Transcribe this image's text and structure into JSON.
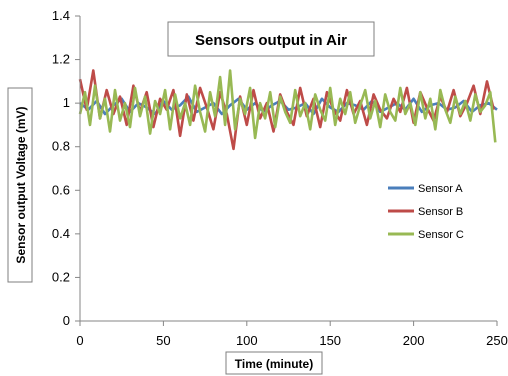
{
  "chart_data": {
    "type": "line",
    "title": "Sensors output in Air",
    "xlabel": "Time (minute)",
    "ylabel": "Sensor output Voltage (mV)",
    "xlim": [
      0,
      250
    ],
    "ylim": [
      0,
      1.4
    ],
    "x_ticks": [
      "0",
      "50",
      "100",
      "150",
      "200",
      "250"
    ],
    "y_ticks": [
      "0",
      "0.2",
      "0.4",
      "0.6",
      "0.8",
      "1",
      "1.2",
      "1.4"
    ],
    "grid": false,
    "legend_position": "right",
    "series": [
      {
        "name": "Sensor A",
        "color": "#4a7ebb",
        "x": [
          0,
          5,
          10,
          15,
          20,
          25,
          30,
          35,
          40,
          45,
          50,
          55,
          60,
          65,
          70,
          75,
          80,
          85,
          90,
          95,
          100,
          105,
          110,
          115,
          120,
          125,
          130,
          135,
          140,
          145,
          150,
          155,
          160,
          165,
          170,
          175,
          180,
          185,
          190,
          195,
          200,
          205,
          210,
          215,
          220,
          225,
          230,
          235,
          240,
          245,
          250
        ],
        "values": [
          1.0,
          0.97,
          1.01,
          0.95,
          0.99,
          1.02,
          0.96,
          1.0,
          0.98,
          0.95,
          1.01,
          0.97,
          0.99,
          1.03,
          0.96,
          0.98,
          1.0,
          0.95,
          0.99,
          1.02,
          0.97,
          1.0,
          0.96,
          0.99,
          1.01,
          0.97,
          0.98,
          1.0,
          0.95,
          1.02,
          0.98,
          0.96,
          1.0,
          0.99,
          0.97,
          1.01,
          0.96,
          0.98,
          1.0,
          0.97,
          1.02,
          0.96,
          0.99,
          1.0,
          0.97,
          0.98,
          1.01,
          0.96,
          0.99,
          1.0,
          0.97
        ]
      },
      {
        "name": "Sensor B",
        "color": "#be4b48",
        "x": [
          0,
          4,
          8,
          12,
          16,
          20,
          24,
          28,
          32,
          36,
          40,
          44,
          48,
          52,
          56,
          60,
          64,
          68,
          72,
          76,
          80,
          84,
          88,
          92,
          96,
          100,
          104,
          108,
          112,
          116,
          120,
          124,
          128,
          132,
          136,
          140,
          144,
          148,
          152,
          156,
          160,
          164,
          168,
          172,
          176,
          180,
          184,
          188,
          192,
          196,
          200,
          204,
          208,
          212,
          216,
          220,
          224,
          228,
          232,
          236,
          240,
          244,
          248
        ],
        "values": [
          1.11,
          0.97,
          1.15,
          0.93,
          1.06,
          0.95,
          1.03,
          0.9,
          1.08,
          0.96,
          1.05,
          0.89,
          1.02,
          0.97,
          1.06,
          0.85,
          1.04,
          0.92,
          1.07,
          0.98,
          0.88,
          1.05,
          0.95,
          0.79,
          1.03,
          0.9,
          1.06,
          0.93,
          1.0,
          0.87,
          1.04,
          0.96,
          0.9,
          1.07,
          0.94,
          1.02,
          0.89,
          1.05,
          0.97,
          0.92,
          1.06,
          0.95,
          1.01,
          0.9,
          1.04,
          0.97,
          0.93,
          1.02,
          0.96,
          1.07,
          0.91,
          1.05,
          0.98,
          0.92,
          1.03,
          0.96,
          1.06,
          0.94,
          1.0,
          1.08,
          0.95,
          1.1,
          0.97
        ]
      },
      {
        "name": "Sensor C",
        "color": "#98b954",
        "x": [
          0,
          3,
          6,
          9,
          12,
          15,
          18,
          21,
          24,
          27,
          30,
          33,
          36,
          39,
          42,
          45,
          48,
          51,
          54,
          57,
          60,
          63,
          66,
          69,
          72,
          75,
          78,
          81,
          84,
          87,
          90,
          93,
          96,
          99,
          102,
          105,
          108,
          111,
          114,
          117,
          120,
          123,
          126,
          129,
          132,
          135,
          138,
          141,
          144,
          147,
          150,
          153,
          156,
          159,
          162,
          165,
          168,
          171,
          174,
          177,
          180,
          183,
          186,
          189,
          192,
          195,
          198,
          201,
          204,
          207,
          210,
          213,
          216,
          219,
          222,
          225,
          228,
          231,
          234,
          237,
          240,
          243,
          246,
          249
        ],
        "values": [
          0.95,
          1.05,
          0.9,
          1.08,
          0.93,
          1.02,
          0.87,
          1.06,
          0.92,
          1.0,
          0.89,
          1.07,
          0.94,
          1.03,
          0.86,
          1.01,
          0.95,
          1.06,
          0.88,
          1.04,
          0.93,
          1.0,
          0.9,
          1.08,
          0.96,
          0.87,
          1.05,
          0.94,
          1.12,
          0.9,
          1.15,
          0.88,
          1.02,
          0.95,
          1.07,
          0.84,
          1.0,
          0.93,
          1.05,
          0.89,
          1.03,
          0.96,
          0.91,
          1.06,
          0.94,
          1.0,
          0.88,
          1.04,
          0.97,
          0.92,
          1.07,
          0.9,
          1.02,
          0.95,
          1.05,
          0.91,
          0.99,
          1.06,
          0.93,
          1.01,
          0.89,
          1.04,
          0.96,
          0.92,
          1.07,
          0.95,
          1.0,
          0.9,
          1.05,
          0.93,
          1.02,
          0.88,
          1.06,
          0.97,
          0.91,
          1.03,
          0.95,
          1.01,
          0.92,
          1.04,
          0.96,
          0.99,
          1.05,
          0.82
        ]
      }
    ]
  }
}
